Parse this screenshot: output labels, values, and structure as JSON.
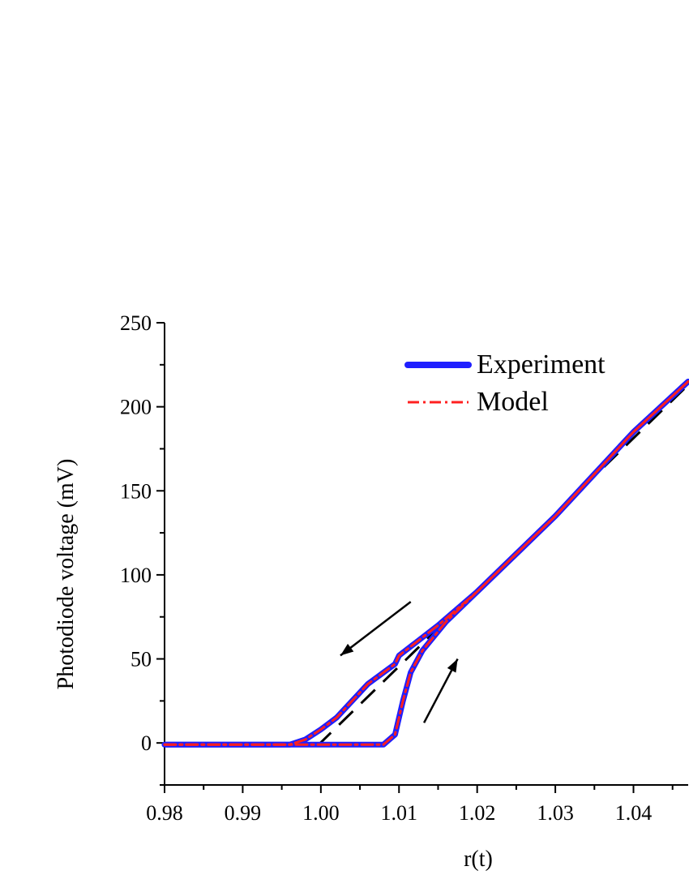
{
  "chart_data": {
    "type": "line",
    "xlabel": "r(t)",
    "ylabel": "Photodiode voltage (mV)",
    "xlim": [
      0.98,
      1.047
    ],
    "ylim": [
      -25,
      250
    ],
    "x_ticks": [
      0.98,
      0.99,
      1.0,
      1.01,
      1.02,
      1.03,
      1.04
    ],
    "x_tick_labels": [
      "0.98",
      "0.99",
      "1.00",
      "1.01",
      "1.02",
      "1.03",
      "1.04"
    ],
    "y_ticks": [
      0,
      50,
      100,
      150,
      200,
      250
    ],
    "y_tick_labels": [
      "0",
      "50",
      "100",
      "150",
      "200",
      "250"
    ],
    "legend": {
      "position": "top-center",
      "entries": [
        {
          "label": "Experiment",
          "color": "#1f1fff",
          "style": "solid-thick"
        },
        {
          "label": "Model",
          "color": "#ff2020",
          "style": "dash-dot"
        }
      ]
    },
    "series": [
      {
        "name": "Experiment",
        "color": "#1f1fff",
        "branches": [
          {
            "x": [
              0.98,
              0.99,
              0.996,
              1.0,
              1.004,
              1.008,
              1.0095,
              1.0105,
              1.0115,
              1.013,
              1.016,
              1.02,
              1.03,
              1.04,
              1.047
            ],
            "y": [
              -1,
              -1,
              -1,
              -1,
              -1,
              -1,
              5,
              25,
              42,
              55,
              72,
              90,
              135,
              185,
              215
            ]
          },
          {
            "x": [
              1.047,
              1.04,
              1.03,
              1.02,
              1.015,
              1.01,
              1.0095,
              1.006,
              1.004,
              1.002,
              1.0,
              0.998,
              0.996,
              0.99,
              0.98
            ],
            "y": [
              215,
              185,
              135,
              90,
              70,
              52,
              47,
              35,
              25,
              15,
              8,
              2,
              -1,
              -1,
              -1
            ]
          }
        ]
      },
      {
        "name": "Model",
        "color": "#ff2020",
        "branches": [
          {
            "x": [
              0.98,
              0.99,
              0.996,
              1.0,
              1.004,
              1.008,
              1.0095,
              1.0105,
              1.0115,
              1.013,
              1.016,
              1.02,
              1.03,
              1.04,
              1.047
            ],
            "y": [
              -1,
              -1,
              -1,
              -1,
              -1,
              -1,
              5,
              25,
              42,
              55,
              72,
              90,
              135,
              185,
              215
            ]
          },
          {
            "x": [
              1.047,
              1.04,
              1.03,
              1.02,
              1.015,
              1.01,
              1.0095,
              1.006,
              1.004,
              1.002,
              1.0,
              0.998,
              0.996,
              0.99,
              0.98
            ],
            "y": [
              215,
              185,
              135,
              90,
              70,
              52,
              47,
              35,
              25,
              15,
              8,
              2,
              -1,
              -1,
              -1
            ]
          }
        ]
      }
    ],
    "reference_line": {
      "style": "dashed",
      "color": "#000000",
      "x": [
        0.9995,
        1.047
      ],
      "y": [
        -2,
        213
      ]
    },
    "arrows": [
      {
        "from": [
          1.0115,
          84
        ],
        "to": [
          1.0025,
          52
        ],
        "color": "#000000"
      },
      {
        "from": [
          1.0132,
          12
        ],
        "to": [
          1.0175,
          50
        ],
        "color": "#000000"
      }
    ]
  }
}
